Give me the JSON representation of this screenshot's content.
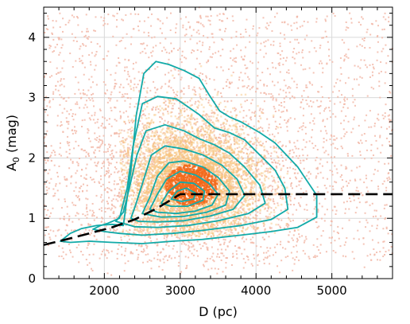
{
  "chart_data": {
    "type": "scatter",
    "title": "",
    "xlabel": "D (pc)",
    "ylabel_main": "A",
    "ylabel_sub": "0",
    "ylabel_unit": " (mag)",
    "xlim": [
      1200,
      5800
    ],
    "ylim": [
      0,
      4.5
    ],
    "x_ticks": [
      2000,
      3000,
      4000,
      5000
    ],
    "x_tick_labels": [
      "2000",
      "3000",
      "4000",
      "5000"
    ],
    "y_ticks": [
      0,
      1,
      2,
      3,
      4
    ],
    "y_tick_labels": [
      "0",
      "1",
      "2",
      "3",
      "4"
    ],
    "x_minor_step": 200,
    "y_minor_step": 0.2,
    "grid": true,
    "colors": {
      "scatter": "#f2b8a8",
      "density_low": "#f7c27a",
      "density_high": "#f26a1b",
      "contour": "#12aaa8",
      "trend_line": "#000000",
      "grid": "#d9d9d9"
    },
    "contours": [
      [
        [
          1420,
          0.62
        ],
        [
          1550,
          0.75
        ],
        [
          1700,
          0.83
        ],
        [
          1900,
          0.88
        ],
        [
          2100,
          0.9
        ],
        [
          2250,
          0.88
        ],
        [
          2350,
          1.8
        ],
        [
          2420,
          2.7
        ],
        [
          2520,
          3.4
        ],
        [
          2680,
          3.6
        ],
        [
          2850,
          3.55
        ],
        [
          3050,
          3.45
        ],
        [
          3250,
          3.32
        ],
        [
          3380,
          3.05
        ],
        [
          3520,
          2.78
        ],
        [
          3650,
          2.68
        ],
        [
          3800,
          2.6
        ],
        [
          4050,
          2.42
        ],
        [
          4250,
          2.25
        ],
        [
          4550,
          1.85
        ],
        [
          4800,
          1.38
        ],
        [
          4800,
          1.02
        ],
        [
          4550,
          0.85
        ],
        [
          4200,
          0.78
        ],
        [
          3800,
          0.72
        ],
        [
          3300,
          0.65
        ],
        [
          2900,
          0.62
        ],
        [
          2500,
          0.58
        ],
        [
          2100,
          0.6
        ],
        [
          1800,
          0.62
        ],
        [
          1550,
          0.6
        ]
      ],
      [
        [
          1850,
          0.82
        ],
        [
          1950,
          0.88
        ],
        [
          2050,
          0.92
        ],
        [
          2200,
          1.0
        ],
        [
          2300,
          1.5
        ],
        [
          2380,
          2.2
        ],
        [
          2500,
          2.9
        ],
        [
          2700,
          3.02
        ],
        [
          2950,
          2.98
        ],
        [
          3100,
          2.85
        ],
        [
          3250,
          2.72
        ],
        [
          3450,
          2.5
        ],
        [
          3650,
          2.42
        ],
        [
          3850,
          2.3
        ],
        [
          4050,
          2.05
        ],
        [
          4250,
          1.8
        ],
        [
          4380,
          1.5
        ],
        [
          4420,
          1.15
        ],
        [
          4200,
          0.98
        ],
        [
          3800,
          0.88
        ],
        [
          3300,
          0.8
        ],
        [
          2900,
          0.75
        ],
        [
          2500,
          0.72
        ],
        [
          2200,
          0.75
        ],
        [
          2000,
          0.78
        ]
      ],
      [
        [
          2150,
          0.95
        ],
        [
          2250,
          1.1
        ],
        [
          2330,
          1.5
        ],
        [
          2430,
          2.05
        ],
        [
          2550,
          2.45
        ],
        [
          2800,
          2.55
        ],
        [
          3050,
          2.45
        ],
        [
          3250,
          2.32
        ],
        [
          3450,
          2.22
        ],
        [
          3650,
          2.08
        ],
        [
          3850,
          1.85
        ],
        [
          4050,
          1.55
        ],
        [
          4120,
          1.25
        ],
        [
          3900,
          1.08
        ],
        [
          3500,
          0.96
        ],
        [
          3100,
          0.88
        ],
        [
          2700,
          0.85
        ],
        [
          2400,
          0.86
        ]
      ],
      [
        [
          2350,
          1.0
        ],
        [
          2420,
          1.25
        ],
        [
          2520,
          1.65
        ],
        [
          2620,
          2.05
        ],
        [
          2800,
          2.2
        ],
        [
          3050,
          2.15
        ],
        [
          3300,
          2.05
        ],
        [
          3550,
          1.88
        ],
        [
          3750,
          1.65
        ],
        [
          3850,
          1.38
        ],
        [
          3700,
          1.15
        ],
        [
          3400,
          1.04
        ],
        [
          3050,
          0.96
        ],
        [
          2700,
          0.94
        ],
        [
          2450,
          0.95
        ]
      ],
      [
        [
          2500,
          1.08
        ],
        [
          2600,
          1.35
        ],
        [
          2700,
          1.7
        ],
        [
          2850,
          1.92
        ],
        [
          3050,
          1.95
        ],
        [
          3300,
          1.85
        ],
        [
          3500,
          1.68
        ],
        [
          3650,
          1.45
        ],
        [
          3600,
          1.22
        ],
        [
          3350,
          1.1
        ],
        [
          3050,
          1.03
        ],
        [
          2750,
          1.02
        ]
      ],
      [
        [
          2600,
          1.15
        ],
        [
          2700,
          1.4
        ],
        [
          2820,
          1.65
        ],
        [
          3000,
          1.78
        ],
        [
          3200,
          1.72
        ],
        [
          3380,
          1.58
        ],
        [
          3500,
          1.4
        ],
        [
          3420,
          1.22
        ],
        [
          3200,
          1.12
        ],
        [
          2950,
          1.08
        ],
        [
          2700,
          1.1
        ]
      ],
      [
        [
          2750,
          1.25
        ],
        [
          2850,
          1.45
        ],
        [
          3000,
          1.6
        ],
        [
          3180,
          1.58
        ],
        [
          3320,
          1.45
        ],
        [
          3300,
          1.3
        ],
        [
          3100,
          1.2
        ],
        [
          2880,
          1.2
        ]
      ],
      [
        [
          2880,
          1.32
        ],
        [
          2960,
          1.45
        ],
        [
          3080,
          1.5
        ],
        [
          3200,
          1.42
        ],
        [
          3180,
          1.32
        ],
        [
          3020,
          1.28
        ]
      ]
    ],
    "trend_line": [
      [
        1200,
        0.56
      ],
      [
        1500,
        0.65
      ],
      [
        1800,
        0.75
      ],
      [
        2100,
        0.85
      ],
      [
        2400,
        0.98
      ],
      [
        2700,
        1.17
      ],
      [
        3000,
        1.4
      ],
      [
        5800,
        1.4
      ]
    ]
  }
}
